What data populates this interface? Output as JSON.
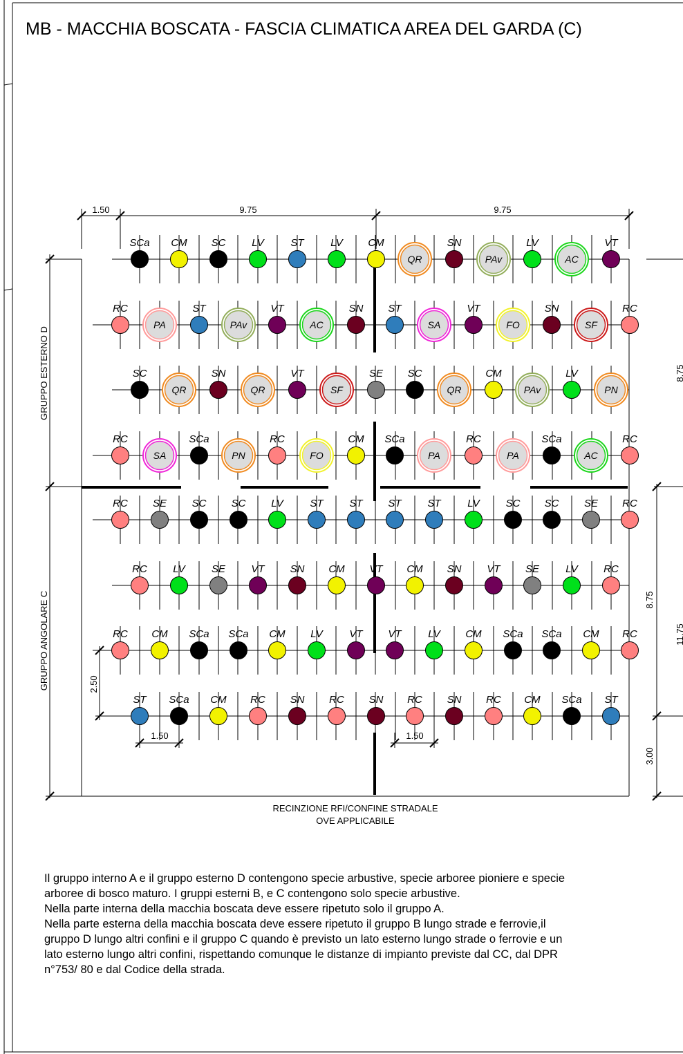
{
  "title": "MB - MACCHIA BOSCATA - FASCIA CLIMATICA AREA DEL GARDA (C)",
  "dimensions": {
    "top": [
      "1.50",
      "9.75",
      "9.75"
    ],
    "right": [
      "8.75",
      "8.75",
      "11.75",
      "3.00"
    ],
    "left": "2.50",
    "bottom": [
      "1.50",
      "1.50"
    ]
  },
  "groups": {
    "d": "GRUPPO ESTERNO D",
    "c": "GRUPPO ANGOLARE C"
  },
  "fence_label": [
    "RECINZIONE RFI/CONFINE STRADALE",
    "OVE APPLICABILE"
  ],
  "species_colors": {
    "SCa": "#000000",
    "SC": "#000000",
    "CM": "#f2f200",
    "LV": "#00e01a",
    "ST": "#2f7dbb",
    "SN": "#6b0020",
    "VT": "#6f0057",
    "RC": "#ff8080",
    "SE": "#808080",
    "PA": "#ff9a9a",
    "PAv": "#92ad5a",
    "AC": "#1ad61a",
    "QR": "#f08a20",
    "SA": "#f026d8",
    "FO": "#f2f22a",
    "SF": "#cc1a1a",
    "PN": "#f08a20"
  },
  "rows": [
    {
      "y": 375,
      "plants": [
        [
          "SCa",
          202
        ],
        [
          "CM",
          259
        ],
        [
          "SC",
          316
        ],
        [
          "LV",
          373
        ],
        [
          "ST",
          430
        ],
        [
          "LV",
          487
        ],
        [
          "CM",
          544
        ],
        [
          "QR",
          600
        ],
        [
          "SN",
          657
        ],
        [
          "PAv",
          714
        ],
        [
          "LV",
          770
        ],
        [
          "AC",
          827
        ],
        [
          "VT",
          884
        ]
      ]
    },
    {
      "y": 470,
      "plants": [
        [
          "RC",
          174
        ],
        [
          "PA",
          231
        ],
        [
          "ST",
          288
        ],
        [
          "PAv",
          345
        ],
        [
          "VT",
          401
        ],
        [
          "AC",
          458
        ],
        [
          "SN",
          515
        ],
        [
          "ST",
          571
        ],
        [
          "SA",
          628
        ],
        [
          "VT",
          685
        ],
        [
          "FO",
          742
        ],
        [
          "SN",
          798
        ],
        [
          "SF",
          855
        ],
        [
          "RC",
          911
        ]
      ]
    },
    {
      "y": 564,
      "plants": [
        [
          "SC",
          202
        ],
        [
          "QR",
          259
        ],
        [
          "SN",
          316
        ],
        [
          "QR",
          373
        ],
        [
          "VT",
          430
        ],
        [
          "SF",
          487
        ],
        [
          "SE",
          544
        ],
        [
          "SC",
          600
        ],
        [
          "QR",
          657
        ],
        [
          "CM",
          714
        ],
        [
          "PAv",
          770
        ],
        [
          "LV",
          827
        ],
        [
          "PN",
          884
        ]
      ]
    },
    {
      "y": 659,
      "plants": [
        [
          "RC",
          174
        ],
        [
          "SA",
          231
        ],
        [
          "SCa",
          288
        ],
        [
          "PN",
          345
        ],
        [
          "RC",
          401
        ],
        [
          "FO",
          458
        ],
        [
          "CM",
          515
        ],
        [
          "SCa",
          571
        ],
        [
          "PA",
          628
        ],
        [
          "RC",
          685
        ],
        [
          "PA",
          742
        ],
        [
          "SCa",
          798
        ],
        [
          "AC",
          855
        ],
        [
          "RC",
          911
        ]
      ]
    },
    {
      "y": 752,
      "plants": [
        [
          "RC",
          174
        ],
        [
          "SE",
          231
        ],
        [
          "SC",
          288
        ],
        [
          "SC",
          345
        ],
        [
          "LV",
          401
        ],
        [
          "ST",
          458
        ],
        [
          "ST",
          515
        ],
        [
          "ST",
          571
        ],
        [
          "ST",
          628
        ],
        [
          "LV",
          685
        ],
        [
          "SC",
          742
        ],
        [
          "SC",
          798
        ],
        [
          "SE",
          855
        ],
        [
          "RC",
          911
        ]
      ]
    },
    {
      "y": 847,
      "plants": [
        [
          "RC",
          202
        ],
        [
          "LV",
          259
        ],
        [
          "SE",
          316
        ],
        [
          "VT",
          373
        ],
        [
          "SN",
          430
        ],
        [
          "CM",
          487
        ],
        [
          "VT",
          544
        ],
        [
          "CM",
          600
        ],
        [
          "SN",
          657
        ],
        [
          "VT",
          714
        ],
        [
          "SE",
          770
        ],
        [
          "LV",
          827
        ],
        [
          "RC",
          884
        ]
      ]
    },
    {
      "y": 941,
      "plants": [
        [
          "RC",
          174
        ],
        [
          "CM",
          231
        ],
        [
          "SCa",
          288
        ],
        [
          "SCa",
          345
        ],
        [
          "CM",
          401
        ],
        [
          "LV",
          458
        ],
        [
          "VT",
          515
        ],
        [
          "VT",
          571
        ],
        [
          "LV",
          628
        ],
        [
          "CM",
          685
        ],
        [
          "SCa",
          742
        ],
        [
          "SCa",
          798
        ],
        [
          "CM",
          855
        ],
        [
          "RC",
          911
        ]
      ]
    },
    {
      "y": 1036,
      "plants": [
        [
          "ST",
          202
        ],
        [
          "SCa",
          259
        ],
        [
          "CM",
          316
        ],
        [
          "RC",
          373
        ],
        [
          "SN",
          430
        ],
        [
          "RC",
          487
        ],
        [
          "SN",
          544
        ],
        [
          "RC",
          600
        ],
        [
          "SN",
          657
        ],
        [
          "RC",
          714
        ],
        [
          "CM",
          770
        ],
        [
          "SCa",
          827
        ],
        [
          "ST",
          884
        ]
      ]
    }
  ],
  "notes": [
    "Il gruppo interno A e il gruppo esterno D contengono specie arbustive, specie arboree pioniere e specie",
    "arboree di bosco maturo. I gruppi esterni B, e C contengono solo specie arbustive.",
    "Nella parte interna della macchia boscata deve essere ripetuto solo il gruppo A.",
    "Nella parte esterna della macchia boscata deve essere ripetuto il gruppo B lungo strade e ferrovie,il",
    "gruppo D lungo altri confini e il gruppo C quando è previsto un lato esterno lungo strade o ferrovie e un",
    "lato esterno lungo altri confini, rispettando comunque le distanze di impianto previste dal CC, dal DPR",
    "n°753/ 80 e dal Codice della strada."
  ]
}
